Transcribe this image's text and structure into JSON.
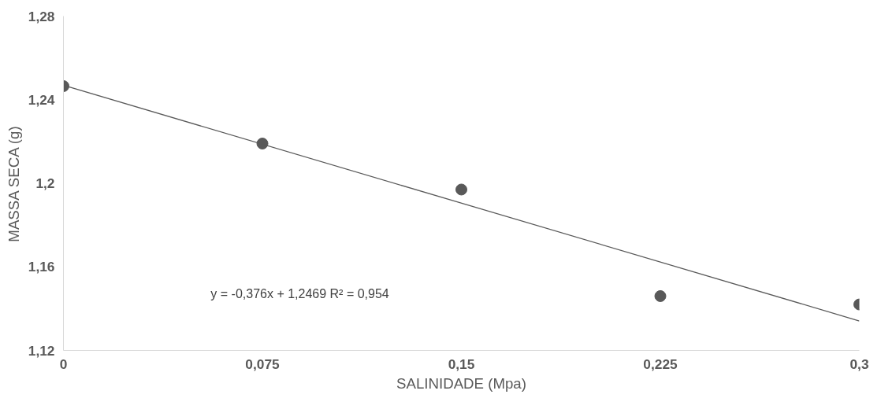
{
  "chart_data": {
    "type": "scatter",
    "xlabel": "SALINIDADE (Mpa)",
    "ylabel": "MASSA SECA (g)",
    "xlim": [
      0,
      0.3
    ],
    "xticks": [
      0,
      {
        "value": 0.075,
        "label": "0,075"
      },
      {
        "value": 0.15,
        "label": "0,15"
      },
      {
        "value": 0.225,
        "label": "0,225"
      },
      {
        "value": 0.3,
        "label": "0,3"
      }
    ],
    "ylim": [
      1.12,
      1.28
    ],
    "yticks": [
      {
        "value": 1.12,
        "label": "1,12"
      },
      {
        "value": 1.16,
        "label": "1,16"
      },
      {
        "value": 1.2,
        "label": "1,2"
      },
      {
        "value": 1.24,
        "label": "1,24"
      },
      {
        "value": 1.28,
        "label": "1,28"
      }
    ],
    "grid": false,
    "series": [
      {
        "marker": "circle",
        "color": "#595959",
        "x": [
          0,
          0.075,
          0.15,
          0.225,
          0.3
        ],
        "values": [
          1.2465,
          1.219,
          1.197,
          1.146,
          1.142
        ]
      },
      {
        "type": "line",
        "marker": "none",
        "color": "#595959",
        "line_style": "solid",
        "x": [
          0,
          0.3
        ],
        "values": [
          1.2469,
          1.1341
        ]
      }
    ],
    "annotations": [
      "y = -0,376x + 1,2469   R² = 0,954"
    ]
  }
}
